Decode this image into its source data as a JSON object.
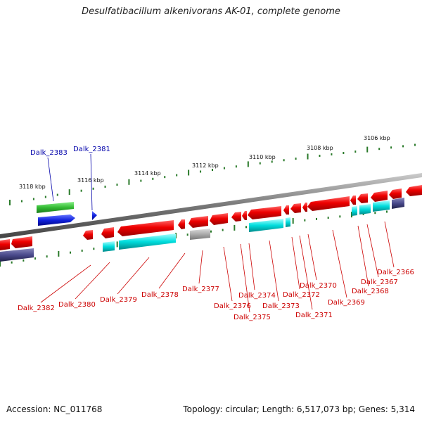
{
  "title": "Desulfatibacillum alkenivorans AK-01, complete genome",
  "footer": {
    "accession": "Accession: NC_011768",
    "summary": "Topology: circular; Length: 6,517,073 bp; Genes: 5,314"
  },
  "colors": {
    "forward_gene": "#e60000",
    "reverse_gene": "#e60000",
    "green_gene": "#33bb33",
    "blue_gene": "#1122dd",
    "cyan_gene": "#00dddd",
    "grey_gene": "#aaaaaa",
    "navy_gene": "#4a4a8c",
    "backbone": "#888888",
    "tick": "#2a7a2a",
    "label_red": "#cc0000",
    "label_blue": "#0000aa"
  },
  "kbp_labels": [
    "3118 kbp",
    "3116 kbp",
    "3114 kbp",
    "3112 kbp",
    "3110 kbp",
    "3108 kbp",
    "3106 kbp"
  ],
  "genes_top": [
    "Dalk_2383",
    "Dalk_2381"
  ],
  "genes_bottom": [
    "Dalk_2382",
    "Dalk_2380",
    "Dalk_2379",
    "Dalk_2378",
    "Dalk_2377",
    "Dalk_2376",
    "Dalk_2375",
    "Dalk_2374",
    "Dalk_2373",
    "Dalk_2372",
    "Dalk_2371",
    "Dalk_2370",
    "Dalk_2369",
    "Dalk_2368",
    "Dalk_2367",
    "Dalk_2366"
  ]
}
